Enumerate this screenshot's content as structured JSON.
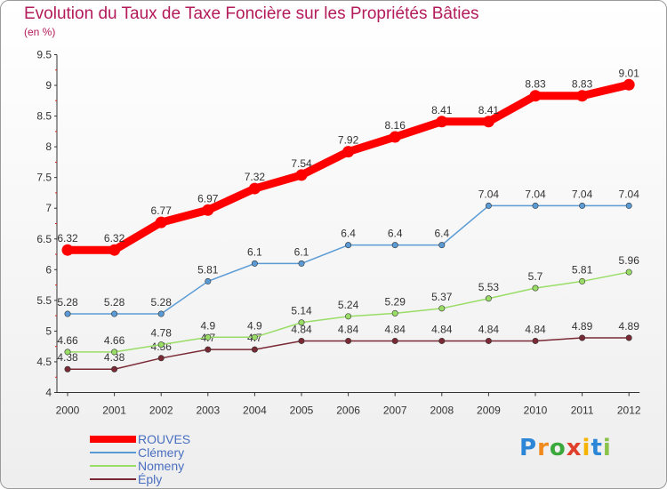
{
  "title": "Evolution du Taux de Taxe Foncière sur les Propriétés Bâties",
  "subtitle": "(en %)",
  "logo": {
    "letters": [
      "P",
      "r",
      "o",
      "x",
      "i",
      "t",
      "i"
    ],
    "colors": [
      "#2b86d8",
      "#f08a1d",
      "#3aa83a",
      "#e0402b",
      "#f4b400",
      "#2b86d8",
      "#8bc34a"
    ]
  },
  "chart_data": {
    "type": "line",
    "x": [
      "2000",
      "2001",
      "2002",
      "2003",
      "2004",
      "2005",
      "2006",
      "2007",
      "2008",
      "2009",
      "2010",
      "2011",
      "2012"
    ],
    "ylim": [
      4,
      9.5
    ],
    "yticks": [
      "4",
      "4.5",
      "5",
      "5.5",
      "6",
      "6.5",
      "7",
      "7.5",
      "8",
      "8.5",
      "9",
      "9.5"
    ],
    "grid": false,
    "legend_position": "bottom-left",
    "series": [
      {
        "name": "ROUVES",
        "color": "#ff0000",
        "values": [
          6.32,
          6.32,
          6.77,
          6.97,
          7.32,
          7.54,
          7.92,
          8.16,
          8.41,
          8.41,
          8.83,
          8.83,
          9.01
        ],
        "labels": [
          "6.32",
          "6.32",
          "6.77",
          "6.97",
          "7.32",
          "7.54",
          "7.92",
          "8.16",
          "8.41",
          "8.41",
          "8.83",
          "8.83",
          "9.01"
        ]
      },
      {
        "name": "Clémery",
        "color": "#5b9bd5",
        "values": [
          5.28,
          5.28,
          5.28,
          5.81,
          6.1,
          6.1,
          6.4,
          6.4,
          6.4,
          7.04,
          7.04,
          7.04,
          7.04
        ],
        "labels": [
          "5.28",
          "5.28",
          "5.28",
          "5.81",
          "6.1",
          "6.1",
          "6.4",
          "6.4",
          "6.4",
          "7.04",
          "7.04",
          "7.04",
          "7.04"
        ]
      },
      {
        "name": "Nomeny",
        "color": "#99dd66",
        "values": [
          4.66,
          4.66,
          4.78,
          4.9,
          4.9,
          5.14,
          5.24,
          5.29,
          5.37,
          5.53,
          5.7,
          5.81,
          5.96
        ],
        "labels": [
          "4.66",
          "4.66",
          "4.78",
          "4.9",
          "4.9",
          "5.14",
          "5.24",
          "5.29",
          "5.37",
          "5.53",
          "5.7",
          "5.81",
          "5.96"
        ]
      },
      {
        "name": "Éply",
        "color": "#7a2a35",
        "values": [
          4.38,
          4.38,
          4.56,
          4.7,
          4.7,
          4.84,
          4.84,
          4.84,
          4.84,
          4.84,
          4.84,
          4.89,
          4.89
        ],
        "labels": [
          "4.38",
          "4.38",
          "4.56",
          "4.7",
          "4.7",
          "4.84",
          "4.84",
          "4.84",
          "4.84",
          "4.84",
          "4.84",
          "4.89",
          "4.89"
        ]
      }
    ]
  }
}
